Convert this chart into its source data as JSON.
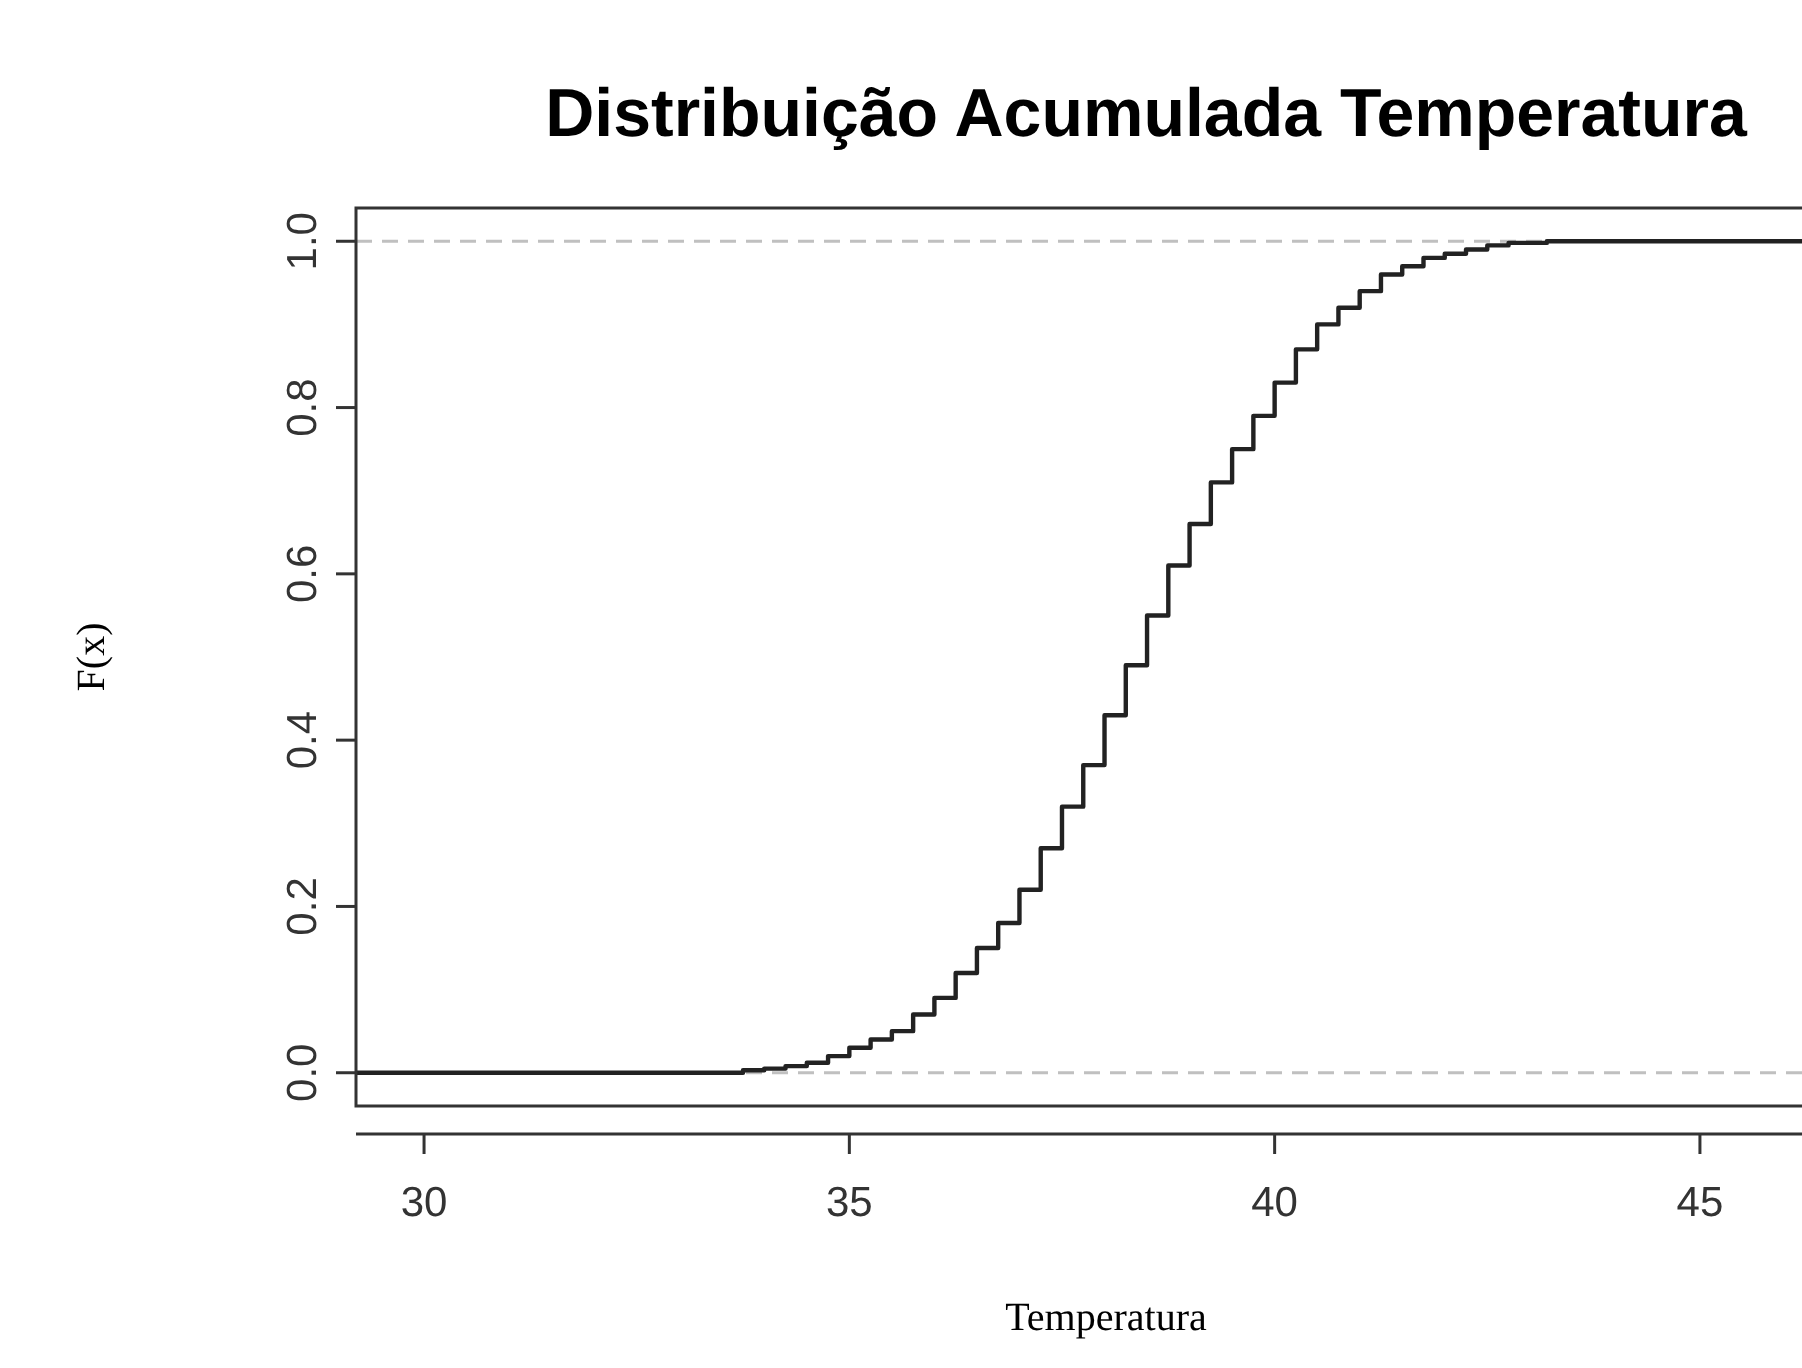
{
  "chart_data": {
    "type": "step",
    "title": "Distribuição Acumulada Temperatura",
    "xlabel": "Temperatura",
    "ylabel": "F(x)",
    "xlim": [
      29.2,
      46.2
    ],
    "xticks": [
      30,
      35,
      40,
      45
    ],
    "ylim": [
      -0.04,
      1.04
    ],
    "yticks": [
      {
        "value": 0,
        "label": "0.0"
      },
      0.2,
      0.4,
      0.6,
      0.8,
      {
        "value": 1,
        "label": "1.0"
      }
    ],
    "x": [
      29.2,
      33.3,
      33.75,
      34,
      34.25,
      34.5,
      34.75,
      35,
      35.25,
      35.5,
      35.75,
      36,
      36.25,
      36.5,
      36.75,
      37,
      37.25,
      37.5,
      37.75,
      38,
      38.25,
      38.5,
      38.75,
      39,
      39.25,
      39.5,
      39.75,
      40,
      40.25,
      40.5,
      40.75,
      41,
      41.25,
      41.5,
      41.75,
      42,
      42.25,
      42.5,
      42.75,
      43.2,
      46.2
    ],
    "series": [
      {
        "color": "#222222",
        "values": [
          0,
          0,
          0.003,
          0.005,
          0.008,
          0.012,
          0.02,
          0.03,
          0.04,
          0.05,
          0.07,
          0.09,
          0.12,
          0.15,
          0.18,
          0.22,
          0.27,
          0.32,
          0.37,
          0.43,
          0.49,
          0.55,
          0.61,
          0.66,
          0.71,
          0.75,
          0.79,
          0.83,
          0.87,
          0.9,
          0.92,
          0.94,
          0.96,
          0.97,
          0.98,
          0.985,
          0.99,
          0.995,
          0.998,
          1,
          1
        ]
      }
    ],
    "ref_lines": [
      {
        "axis": "y",
        "value": 0,
        "color": "#c0c0c0",
        "line_style": "dashed"
      },
      {
        "axis": "y",
        "value": 1,
        "color": "#c0c0c0",
        "line_style": "dashed"
      }
    ],
    "grid": false
  }
}
